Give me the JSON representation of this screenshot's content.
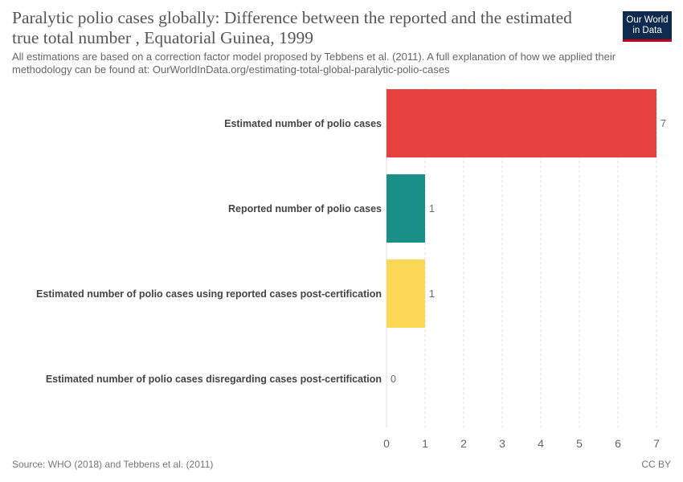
{
  "header": {
    "title": "Paralytic polio cases globally: Difference between the reported and the estimated true total number , Equatorial Guinea, 1999",
    "subtitle": "All estimations are based on a correction factor model proposed by Tebbens et al. (2011). A full explanation of how we applied their methodology can be found at: OurWorldInData.org/estimating-total-global-paralytic-polio-cases",
    "logo_line1": "Our World",
    "logo_line2": "in Data"
  },
  "footer": {
    "source": "Source: WHO (2018) and Tebbens et al. (2011)",
    "license": "CC BY"
  },
  "chart_data": {
    "type": "bar",
    "orientation": "horizontal",
    "categories": [
      "Estimated number of polio cases",
      "Reported number of polio cases",
      "Estimated number of polio cases using reported cases post-certification",
      "Estimated number of polio cases disregarding cases post-certification"
    ],
    "values": [
      7,
      1,
      1,
      0
    ],
    "colors": [
      "#e6413e",
      "#1a9088",
      "#fdd856",
      "#8e67a6"
    ],
    "xlim": [
      0,
      7
    ],
    "xticks": [
      "0",
      "1",
      "2",
      "3",
      "4",
      "5",
      "6",
      "7"
    ],
    "grid": true
  }
}
